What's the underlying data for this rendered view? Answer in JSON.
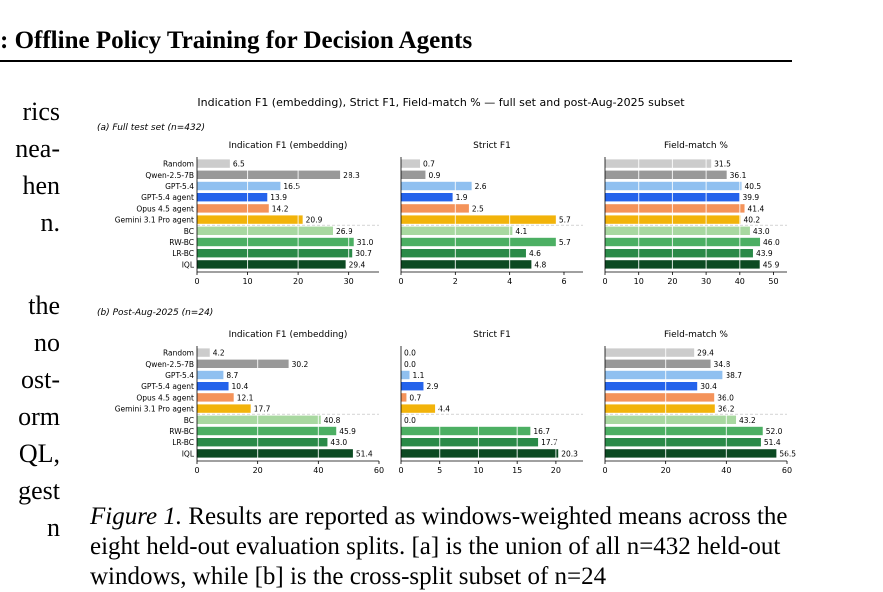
{
  "header": {
    "prefix": ":",
    "title": "Offline Policy Training for Decision Agents"
  },
  "left_text": {
    "block1": [
      "rics",
      "nea-",
      "hen",
      "n."
    ],
    "block2": [
      "the",
      "no",
      "ost-",
      "orm",
      "QL,",
      "gest",
      "n"
    ]
  },
  "figure": {
    "suptitle": "Indication F1 (embedding), Strict F1, Field-match % — full set and post-Aug-2025 subset",
    "colors": {
      "Random": "#cccccc",
      "Qwen-2.5-7B": "#999999",
      "GPT-5.4": "#90c0f0",
      "GPT-5.4 agent": "#2563eb",
      "Opus 4.5 agent": "#f4935a",
      "Gemini 3.1 Pro agent": "#f2b30a",
      "BC": "#a8d8a0",
      "RW-BC": "#4caf63",
      "LR-BC": "#2a8a48",
      "IQL": "#0c4a22"
    }
  },
  "chart_data": [
    {
      "type": "bar",
      "orientation": "horizontal",
      "row": "a",
      "row_label": "(a) Full test set (n=432)",
      "title": "Indication F1 (embedding)",
      "categories": [
        "Random",
        "Qwen-2.5-7B",
        "GPT-5.4",
        "GPT-5.4 agent",
        "Opus 4.5 agent",
        "Gemini 3.1 Pro agent",
        "BC",
        "RW-BC",
        "LR-BC",
        "IQL"
      ],
      "values": [
        6.5,
        28.3,
        16.5,
        13.9,
        14.2,
        20.9,
        26.9,
        31.0,
        30.7,
        29.4
      ],
      "value_labels": [
        "6.5",
        "28.3",
        "16.5",
        "13.9",
        "14.2",
        "20.9",
        "26.9",
        "31.0",
        "30.7",
        "29.4"
      ],
      "xlim": [
        0,
        36
      ],
      "xticks": [
        0,
        10,
        20,
        30
      ],
      "grid": true
    },
    {
      "type": "bar",
      "orientation": "horizontal",
      "row": "a",
      "title": "Strict F1",
      "categories": [
        "Random",
        "Qwen-2.5-7B",
        "GPT-5.4",
        "GPT-5.4 agent",
        "Opus 4.5 agent",
        "Gemini 3.1 Pro agent",
        "BC",
        "RW-BC",
        "LR-BC",
        "IQL"
      ],
      "values": [
        0.7,
        0.9,
        2.6,
        1.9,
        2.5,
        5.7,
        4.1,
        5.7,
        4.6,
        4.8
      ],
      "value_labels": [
        "0.7",
        "0.9",
        "2.6",
        "1.9",
        "2.5",
        "5.7",
        "4.1",
        "5.7",
        "4.6",
        "4.8"
      ],
      "xlim": [
        0,
        6.7
      ],
      "xticks": [
        0,
        2,
        4,
        6
      ],
      "grid": true
    },
    {
      "type": "bar",
      "orientation": "horizontal",
      "row": "a",
      "title": "Field-match %",
      "categories": [
        "Random",
        "Qwen-2.5-7B",
        "GPT-5.4",
        "GPT-5.4 agent",
        "Opus 4.5 agent",
        "Gemini 3.1 Pro agent",
        "BC",
        "RW-BC",
        "LR-BC",
        "IQL"
      ],
      "values": [
        31.5,
        36.1,
        40.5,
        39.9,
        41.4,
        40.2,
        43.0,
        46.0,
        43.9,
        45.9
      ],
      "value_labels": [
        "31.5",
        "36.1",
        "40.5",
        "39.9",
        "41.4",
        "40.2",
        "43.0",
        "46.0",
        "43.9",
        "45.9"
      ],
      "xlim": [
        0,
        54
      ],
      "xticks": [
        0,
        10,
        20,
        30,
        40,
        50
      ],
      "grid": true
    },
    {
      "type": "bar",
      "orientation": "horizontal",
      "row": "b",
      "row_label": "(b) Post-Aug-2025 (n=24)",
      "title": "Indication F1 (embedding)",
      "categories": [
        "Random",
        "Qwen-2.5-7B",
        "GPT-5.4",
        "GPT-5.4 agent",
        "Opus 4.5 agent",
        "Gemini 3.1 Pro agent",
        "BC",
        "RW-BC",
        "LR-BC",
        "IQL"
      ],
      "values": [
        4.2,
        30.2,
        8.7,
        10.4,
        12.1,
        17.7,
        40.8,
        45.9,
        43.0,
        51.4
      ],
      "value_labels": [
        "4.2",
        "30.2",
        "8.7",
        "10.4",
        "12.1",
        "17.7",
        "40.8",
        "45.9",
        "43.0",
        "51.4"
      ],
      "xlim": [
        0,
        60
      ],
      "xticks": [
        0,
        20,
        40,
        60
      ],
      "grid": true
    },
    {
      "type": "bar",
      "orientation": "horizontal",
      "row": "b",
      "title": "Strict F1",
      "categories": [
        "Random",
        "Qwen-2.5-7B",
        "GPT-5.4",
        "GPT-5.4 agent",
        "Opus 4.5 agent",
        "Gemini 3.1 Pro agent",
        "BC",
        "RW-BC",
        "LR-BC",
        "IQL"
      ],
      "values": [
        0.0,
        0.0,
        1.1,
        2.9,
        0.7,
        4.4,
        0.0,
        16.7,
        17.7,
        20.3
      ],
      "value_labels": [
        "0.0",
        "0.0",
        "1.1",
        "2.9",
        "0.7",
        "4.4",
        "0.0",
        "16.7",
        "17.7",
        "20.3"
      ],
      "xlim": [
        0,
        23.5
      ],
      "xticks": [
        0,
        5,
        10,
        15,
        20
      ],
      "grid": true
    },
    {
      "type": "bar",
      "orientation": "horizontal",
      "row": "b",
      "title": "Field-match %",
      "categories": [
        "Random",
        "Qwen-2.5-7B",
        "GPT-5.4",
        "GPT-5.4 agent",
        "Opus 4.5 agent",
        "Gemini 3.1 Pro agent",
        "BC",
        "RW-BC",
        "LR-BC",
        "IQL"
      ],
      "values": [
        29.4,
        34.8,
        38.7,
        30.4,
        36.0,
        36.2,
        43.2,
        52.0,
        51.4,
        56.5
      ],
      "value_labels": [
        "29.4",
        "34.8",
        "38.7",
        "30.4",
        "36.0",
        "36.2",
        "43.2",
        "52.0",
        "51.4",
        "56.5"
      ],
      "xlim": [
        0,
        60
      ],
      "xticks": [
        0,
        20,
        40,
        60
      ],
      "grid": true
    }
  ],
  "caption": {
    "label": "Figure 1.",
    "text": "Results are reported as windows-weighted means across the eight held-out evaluation splits. [a] is the union of all n=432 held-out windows, while [b] is the cross-split subset of n=24"
  }
}
